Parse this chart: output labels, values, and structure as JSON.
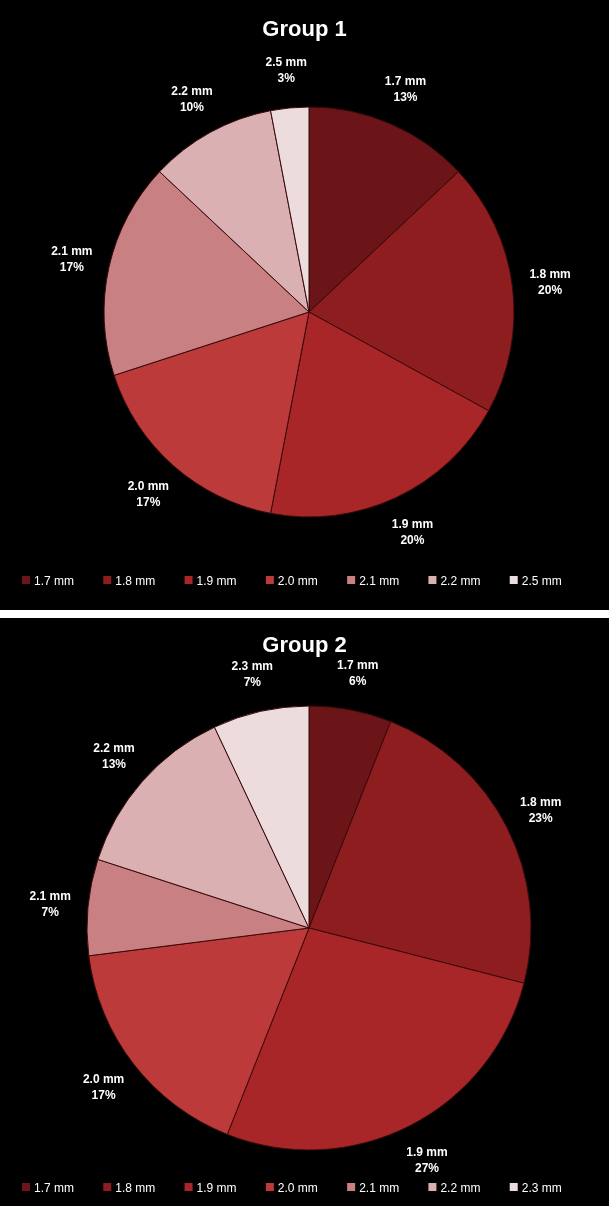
{
  "chart_data": [
    {
      "type": "pie",
      "title": "Group 1",
      "categories": [
        "1.7 mm",
        "1.8 mm",
        "1.9 mm",
        "2.0 mm",
        "2.1 mm",
        "2.2 mm",
        "2.5 mm"
      ],
      "values": [
        13,
        20,
        20,
        17,
        17,
        10,
        3
      ],
      "value_labels": [
        "13%",
        "20%",
        "20%",
        "17%",
        "17%",
        "10%",
        "3%"
      ],
      "colors": [
        "#6b1518",
        "#8e1d20",
        "#a82628",
        "#bd3a3b",
        "#c98083",
        "#dbb0b2",
        "#ecdcdd"
      ],
      "legend": "bottom"
    },
    {
      "type": "pie",
      "title": "Group 2",
      "categories": [
        "1.7 mm",
        "1.8 mm",
        "1.9 mm",
        "2.0 mm",
        "2.1 mm",
        "2.2 mm",
        "2.3 mm"
      ],
      "values": [
        6,
        23,
        27,
        17,
        7,
        13,
        7
      ],
      "value_labels": [
        "6%",
        "23%",
        "27%",
        "17%",
        "7%",
        "13%",
        "7%"
      ],
      "colors": [
        "#6b1518",
        "#8e1d20",
        "#a82628",
        "#bd3a3b",
        "#c98083",
        "#dbb0b2",
        "#ecdcdd"
      ],
      "legend": "bottom"
    }
  ]
}
